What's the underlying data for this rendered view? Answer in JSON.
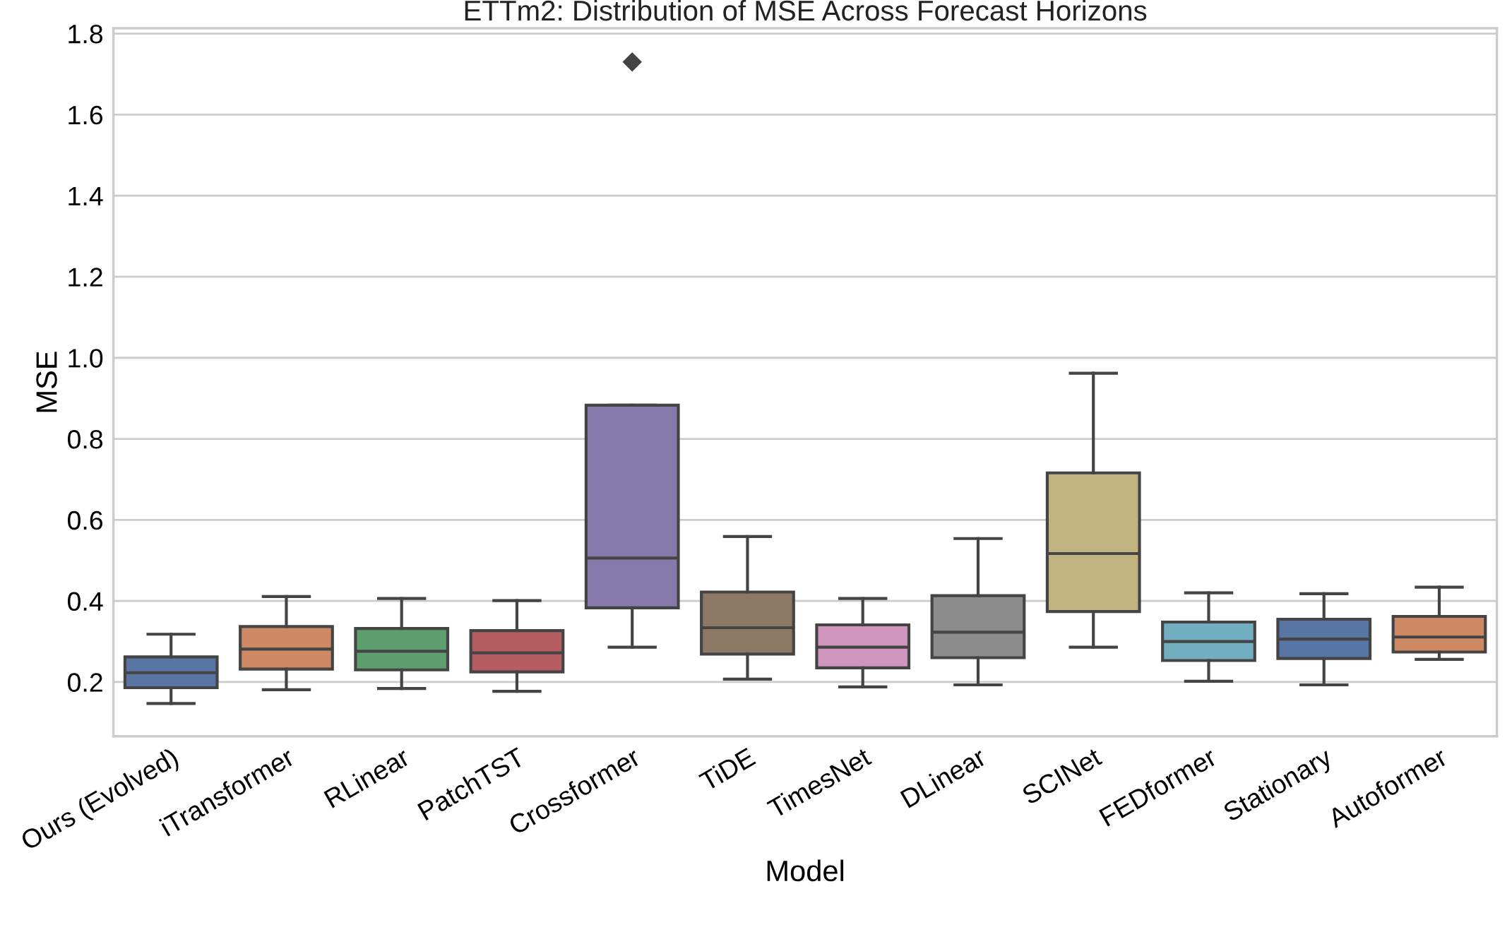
{
  "chart_data": {
    "type": "box",
    "title": "ETTm2: Distribution of MSE Across Forecast Horizons",
    "xlabel": "Model",
    "ylabel": "MSE",
    "categories": [
      "Ours (Evolved)",
      "iTransformer",
      "RLinear",
      "PatchTST",
      "Crossformer",
      "TiDE",
      "TimesNet",
      "DLinear",
      "SCINet",
      "FEDformer",
      "Stationary",
      "Autoformer"
    ],
    "colors": [
      "#5875a4",
      "#cc8963",
      "#5f9e6e",
      "#b55d60",
      "#857aab",
      "#8d7866",
      "#d095bf",
      "#8c8c8c",
      "#c1b37f",
      "#71aec0",
      "#5875a4",
      "#cc8963"
    ],
    "boxes": [
      {
        "low": 0.147,
        "q1": 0.186,
        "median": 0.223,
        "q3": 0.262,
        "high": 0.318
      },
      {
        "low": 0.181,
        "q1": 0.232,
        "median": 0.281,
        "q3": 0.337,
        "high": 0.411
      },
      {
        "low": 0.184,
        "q1": 0.23,
        "median": 0.276,
        "q3": 0.332,
        "high": 0.406
      },
      {
        "low": 0.177,
        "q1": 0.225,
        "median": 0.272,
        "q3": 0.327,
        "high": 0.401
      },
      {
        "low": 0.286,
        "q1": 0.383,
        "median": 0.506,
        "q3": 0.883,
        "high": 0.883,
        "outliers": [
          1.73
        ]
      },
      {
        "low": 0.207,
        "q1": 0.269,
        "median": 0.334,
        "q3": 0.422,
        "high": 0.559
      },
      {
        "low": 0.188,
        "q1": 0.235,
        "median": 0.286,
        "q3": 0.341,
        "high": 0.406
      },
      {
        "low": 0.193,
        "q1": 0.26,
        "median": 0.323,
        "q3": 0.413,
        "high": 0.554
      },
      {
        "low": 0.286,
        "q1": 0.374,
        "median": 0.517,
        "q3": 0.716,
        "high": 0.962
      },
      {
        "low": 0.202,
        "q1": 0.253,
        "median": 0.3,
        "q3": 0.348,
        "high": 0.42
      },
      {
        "low": 0.193,
        "q1": 0.258,
        "median": 0.306,
        "q3": 0.355,
        "high": 0.418
      },
      {
        "low": 0.256,
        "q1": 0.274,
        "median": 0.311,
        "q3": 0.362,
        "high": 0.434
      }
    ],
    "ylim": [
      0.066,
      1.813
    ],
    "yticks": [
      0.2,
      0.4,
      0.6,
      0.8,
      {
        "value": 1,
        "label": "1.0"
      },
      1.2,
      1.4,
      1.6,
      1.8
    ],
    "grid": "y",
    "marker": "diamond"
  }
}
